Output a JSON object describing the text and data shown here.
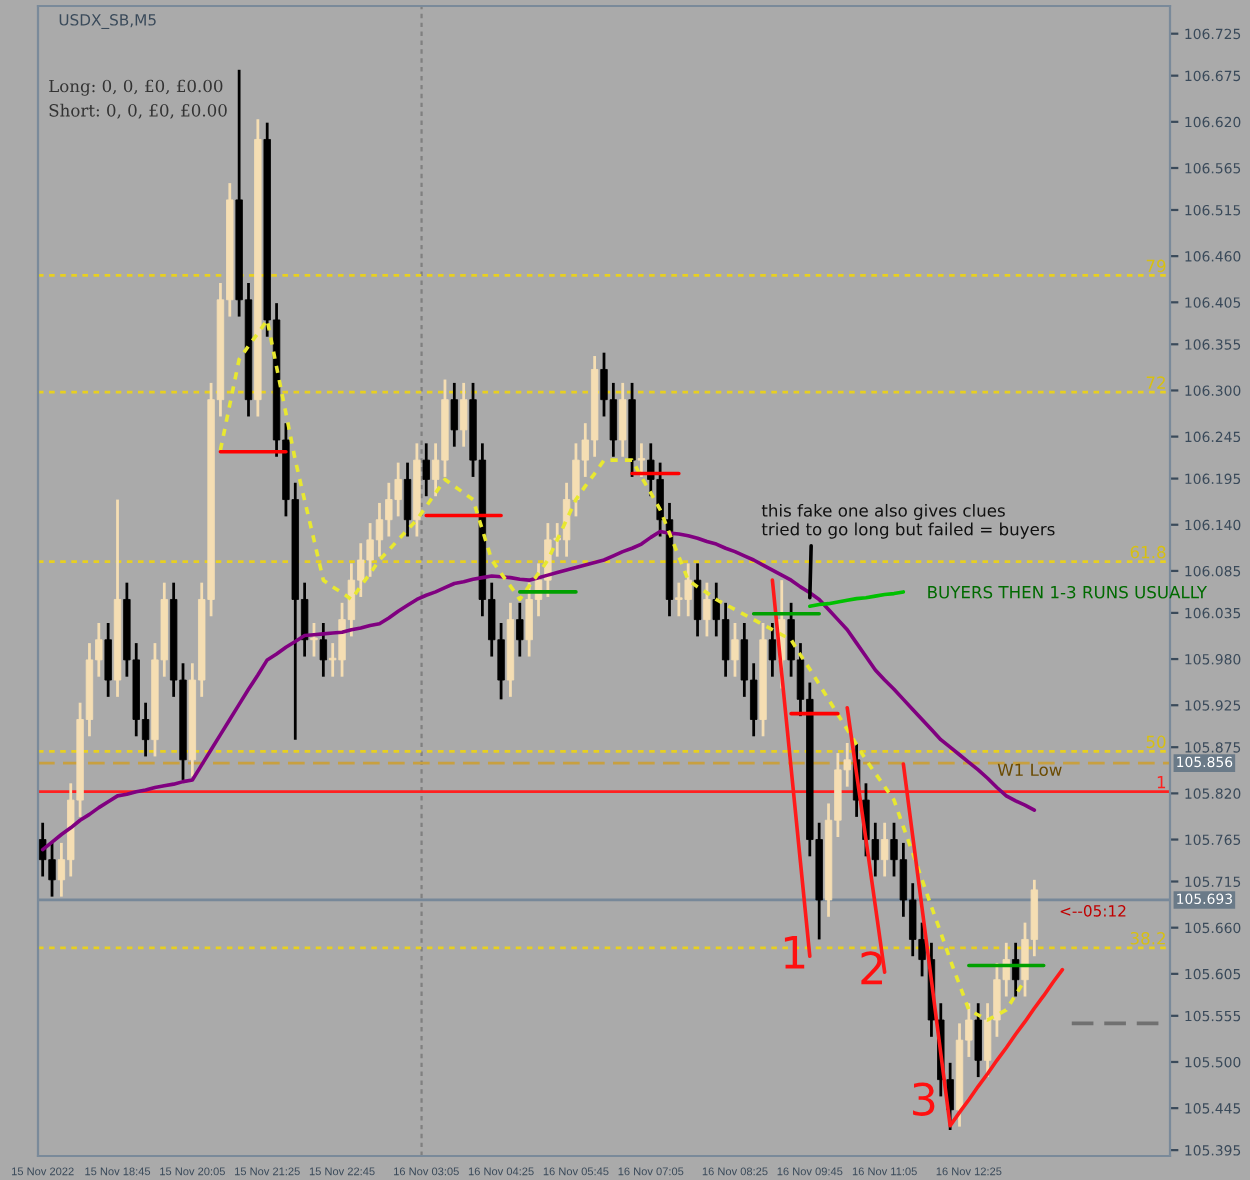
{
  "chart_data": {
    "type": "candlestick",
    "title": "USDX_SB,M5",
    "categories": [
      "15 Nov 2022",
      null,
      null,
      null,
      null,
      null,
      null,
      null,
      "15 Nov 18:45",
      null,
      null,
      null,
      null,
      null,
      null,
      null,
      "15 Nov 20:05",
      null,
      null,
      null,
      null,
      null,
      null,
      null,
      "15 Nov 21:25",
      null,
      null,
      null,
      null,
      null,
      null,
      null,
      "15 Nov 22:45",
      null,
      null,
      null,
      null,
      null,
      null,
      null,
      null,
      "16 Nov 03:05",
      null,
      null,
      null,
      null,
      null,
      null,
      null,
      "16 Nov 04:25",
      null,
      null,
      null,
      null,
      null,
      null,
      null,
      "16 Nov 05:45",
      null,
      null,
      null,
      null,
      null,
      null,
      null,
      "16 Nov 07:05",
      null,
      null,
      null,
      null,
      null,
      null,
      null,
      null,
      "16 Nov 08:25",
      null,
      null,
      null,
      null,
      null,
      null,
      null,
      "16 Nov 09:45",
      null,
      null,
      null,
      null,
      null,
      null,
      null,
      "16 Nov 11:05",
      null,
      null,
      null,
      null,
      null,
      null,
      null,
      null,
      "16 Nov 12:25",
      null,
      null,
      null,
      null,
      null,
      null,
      null,
      null,
      null,
      null,
      null,
      null,
      null,
      null,
      null,
      null,
      null,
      null,
      null,
      null,
      null
    ],
    "ohlc": [
      [
        105.765,
        105.785,
        105.721,
        105.741
      ],
      [
        105.741,
        105.761,
        105.697,
        105.717
      ],
      [
        105.717,
        105.761,
        105.697,
        105.741
      ],
      [
        105.741,
        105.832,
        105.721,
        105.812
      ],
      [
        105.812,
        105.928,
        105.792,
        105.908
      ],
      [
        105.908,
        105.999,
        105.888,
        105.979
      ],
      [
        105.979,
        106.023,
        105.959,
        106.003
      ],
      [
        106.003,
        106.023,
        105.935,
        105.955
      ],
      [
        105.955,
        106.17,
        105.935,
        106.051
      ],
      [
        106.051,
        106.071,
        105.959,
        105.979
      ],
      [
        105.979,
        105.999,
        105.888,
        105.908
      ],
      [
        105.908,
        105.928,
        105.864,
        105.884
      ],
      [
        105.884,
        105.999,
        105.864,
        105.979
      ],
      [
        105.979,
        106.071,
        105.959,
        106.051
      ],
      [
        106.051,
        106.071,
        105.935,
        105.955
      ],
      [
        105.955,
        105.975,
        105.836,
        105.86
      ],
      [
        105.86,
        105.975,
        105.84,
        105.955
      ],
      [
        105.955,
        106.071,
        105.935,
        106.051
      ],
      [
        106.051,
        106.309,
        106.031,
        106.289
      ],
      [
        106.289,
        106.428,
        106.269,
        106.408
      ],
      [
        106.408,
        106.547,
        106.388,
        106.527
      ],
      [
        106.527,
        106.682,
        106.388,
        106.408
      ],
      [
        106.408,
        106.428,
        106.269,
        106.289
      ],
      [
        106.289,
        106.623,
        106.269,
        106.599
      ],
      [
        106.599,
        106.619,
        106.364,
        106.384
      ],
      [
        106.384,
        106.404,
        106.221,
        106.241
      ],
      [
        106.241,
        106.261,
        106.15,
        106.17
      ],
      [
        106.17,
        106.19,
        105.884,
        106.051
      ],
      [
        106.051,
        106.071,
        105.983,
        106.003
      ],
      [
        106.003,
        106.023,
        105.983,
        106.003
      ],
      [
        106.003,
        106.023,
        105.959,
        105.979
      ],
      [
        105.979,
        105.999,
        105.959,
        105.979
      ],
      [
        105.979,
        106.047,
        105.959,
        106.027
      ],
      [
        106.027,
        106.094,
        106.007,
        106.074
      ],
      [
        106.074,
        106.118,
        106.054,
        106.098
      ],
      [
        106.098,
        106.142,
        106.078,
        106.122
      ],
      [
        106.122,
        106.166,
        106.102,
        106.146
      ],
      [
        106.146,
        106.19,
        106.126,
        106.17
      ],
      [
        106.17,
        106.214,
        106.15,
        106.194
      ],
      [
        106.194,
        106.214,
        106.126,
        106.146
      ],
      [
        106.146,
        106.237,
        106.126,
        106.217
      ],
      [
        106.217,
        106.237,
        106.174,
        106.194
      ],
      [
        106.194,
        106.237,
        106.174,
        106.217
      ],
      [
        106.217,
        106.313,
        106.197,
        106.289
      ],
      [
        106.289,
        106.309,
        106.233,
        106.253
      ],
      [
        106.253,
        106.309,
        106.233,
        106.289
      ],
      [
        106.289,
        106.309,
        106.197,
        106.217
      ],
      [
        106.217,
        106.237,
        106.031,
        106.051
      ],
      [
        106.051,
        106.071,
        105.983,
        106.003
      ],
      [
        106.003,
        106.023,
        105.932,
        105.955
      ],
      [
        105.955,
        106.047,
        105.935,
        106.027
      ],
      [
        106.027,
        106.047,
        105.983,
        106.003
      ],
      [
        106.003,
        106.071,
        105.983,
        106.051
      ],
      [
        106.051,
        106.094,
        106.031,
        106.074
      ],
      [
        106.074,
        106.142,
        106.054,
        106.122
      ],
      [
        106.122,
        106.142,
        106.102,
        106.122
      ],
      [
        106.122,
        106.19,
        106.102,
        106.17
      ],
      [
        106.17,
        106.237,
        106.15,
        106.217
      ],
      [
        106.217,
        106.261,
        106.197,
        106.241
      ],
      [
        106.241,
        106.341,
        106.221,
        106.325
      ],
      [
        106.325,
        106.345,
        106.269,
        106.289
      ],
      [
        106.289,
        106.309,
        106.221,
        106.241
      ],
      [
        106.241,
        106.309,
        106.221,
        106.289
      ],
      [
        106.289,
        106.309,
        106.197,
        106.217
      ],
      [
        106.217,
        106.237,
        106.197,
        106.217
      ],
      [
        106.217,
        106.237,
        106.174,
        106.194
      ],
      [
        106.194,
        106.214,
        106.126,
        106.146
      ],
      [
        106.146,
        106.166,
        106.031,
        106.051
      ],
      [
        106.051,
        106.071,
        106.031,
        106.051
      ],
      [
        106.051,
        106.094,
        106.031,
        106.074
      ],
      [
        106.074,
        106.094,
        106.007,
        106.027
      ],
      [
        106.027,
        106.071,
        106.007,
        106.051
      ],
      [
        106.051,
        106.071,
        106.007,
        106.027
      ],
      [
        106.027,
        106.047,
        105.959,
        105.979
      ],
      [
        105.979,
        106.023,
        105.959,
        106.003
      ],
      [
        106.003,
        106.023,
        105.935,
        105.955
      ],
      [
        105.955,
        105.975,
        105.888,
        105.908
      ],
      [
        105.908,
        106.023,
        105.888,
        106.003
      ],
      [
        106.003,
        106.023,
        105.959,
        105.979
      ],
      [
        105.979,
        106.074,
        105.945,
        106.027
      ],
      [
        106.027,
        106.047,
        105.959,
        105.979
      ],
      [
        105.979,
        105.999,
        105.912,
        105.932
      ],
      [
        105.932,
        105.952,
        105.745,
        105.765
      ],
      [
        105.765,
        105.785,
        105.646,
        105.693
      ],
      [
        105.693,
        105.808,
        105.673,
        105.788
      ],
      [
        105.788,
        105.868,
        105.768,
        105.848
      ],
      [
        105.848,
        105.88,
        105.828,
        105.86
      ],
      [
        105.86,
        105.88,
        105.792,
        105.812
      ],
      [
        105.812,
        105.832,
        105.745,
        105.765
      ],
      [
        105.765,
        105.785,
        105.721,
        105.741
      ],
      [
        105.741,
        105.785,
        105.721,
        105.765
      ],
      [
        105.765,
        105.785,
        105.721,
        105.741
      ],
      [
        105.741,
        105.761,
        105.673,
        105.693
      ],
      [
        105.693,
        105.713,
        105.626,
        105.646
      ],
      [
        105.646,
        105.666,
        105.602,
        105.622
      ],
      [
        105.622,
        105.642,
        105.53,
        105.55
      ],
      [
        105.55,
        105.57,
        105.459,
        105.479
      ],
      [
        105.479,
        105.499,
        105.419,
        105.443
      ],
      [
        105.443,
        105.546,
        105.423,
        105.526
      ],
      [
        105.526,
        105.57,
        105.506,
        105.55
      ],
      [
        105.55,
        105.57,
        105.482,
        105.502
      ],
      [
        105.502,
        105.57,
        105.482,
        105.55
      ],
      [
        105.55,
        105.618,
        105.53,
        105.598
      ],
      [
        105.598,
        105.642,
        105.578,
        105.622
      ],
      [
        105.622,
        105.642,
        105.578,
        105.598
      ],
      [
        105.598,
        105.666,
        105.578,
        105.646
      ],
      [
        105.646,
        105.717,
        105.626,
        105.705
      ],
      null,
      null,
      null,
      null,
      null,
      null,
      null,
      null,
      null,
      null,
      null,
      null,
      null,
      null
    ],
    "series": [
      {
        "type": "line",
        "color": "#800080",
        "values": [
          105.753,
          105.762,
          105.771,
          105.779,
          105.788,
          105.795,
          105.803,
          105.81,
          105.817,
          105.819,
          105.822,
          105.824,
          105.827,
          105.829,
          105.831,
          105.834,
          105.836,
          105.854,
          105.872,
          105.89,
          105.908,
          105.926,
          105.944,
          105.961,
          105.979,
          105.986,
          105.994,
          106.001,
          106.008,
          106.009,
          106.01,
          106.011,
          106.012,
          106.015,
          106.017,
          106.02,
          106.022,
          106.029,
          106.037,
          106.044,
          106.051,
          106.056,
          106.06,
          106.065,
          106.07,
          106.072,
          106.075,
          106.077,
          106.079,
          106.078,
          106.077,
          106.075,
          106.074,
          106.077,
          106.08,
          106.083,
          106.086,
          106.089,
          106.092,
          106.095,
          106.098,
          106.103,
          106.108,
          106.112,
          106.117,
          106.125,
          106.132,
          106.13,
          106.129,
          106.127,
          106.124,
          106.12,
          106.117,
          106.112,
          106.108,
          106.103,
          106.098,
          106.092,
          106.086,
          106.08,
          106.074,
          106.066,
          106.059,
          106.051,
          106.039,
          106.027,
          106.015,
          105.999,
          105.983,
          105.967,
          105.955,
          105.944,
          105.932,
          105.92,
          105.908,
          105.896,
          105.884,
          105.875,
          105.866,
          105.857,
          105.848,
          105.838,
          105.827,
          105.817,
          105.811,
          105.806,
          105.8,
          null,
          null,
          null,
          null,
          null,
          null,
          null,
          null,
          null,
          null,
          null,
          null,
          null,
          null
        ]
      },
      {
        "type": "line",
        "color": "#e8e830",
        "line_style": "dotted",
        "values": [
          null,
          null,
          null,
          null,
          null,
          null,
          null,
          null,
          null,
          null,
          null,
          null,
          null,
          null,
          null,
          null,
          null,
          null,
          null,
          106.229,
          106.283,
          106.337,
          106.353,
          106.368,
          106.384,
          106.328,
          106.273,
          106.217,
          106.169,
          106.122,
          106.074,
          106.066,
          106.059,
          106.051,
          106.067,
          106.082,
          106.098,
          106.11,
          106.122,
          106.134,
          106.146,
          106.162,
          106.178,
          106.194,
          106.186,
          106.178,
          106.17,
          106.134,
          106.098,
          106.082,
          106.067,
          106.051,
          106.067,
          106.082,
          106.098,
          106.122,
          106.146,
          106.17,
          106.186,
          106.201,
          106.217,
          106.217,
          106.217,
          106.217,
          106.197,
          106.178,
          106.158,
          106.13,
          106.102,
          106.074,
          106.066,
          106.059,
          106.051,
          106.045,
          106.039,
          106.033,
          106.027,
          106.021,
          106.015,
          106.009,
          106.003,
          105.985,
          105.968,
          105.95,
          105.932,
          105.914,
          105.896,
          105.878,
          105.86,
          105.844,
          105.828,
          105.812,
          105.78,
          105.749,
          105.717,
          105.685,
          105.654,
          105.622,
          105.592,
          105.562,
          105.556,
          105.55,
          105.556,
          105.562,
          105.58,
          105.598,
          null,
          null,
          null,
          null,
          null,
          null,
          null,
          null,
          null,
          null,
          null,
          null,
          null,
          null,
          null
        ]
      },
      {
        "type": "line",
        "color": "#ff0000",
        "values": [
          null,
          null,
          null,
          null,
          null,
          null,
          null,
          null,
          null,
          null,
          null,
          null,
          null,
          null,
          null,
          null,
          null,
          null,
          null,
          106.227,
          106.227,
          106.227,
          106.227,
          106.227,
          106.227,
          106.227,
          106.227,
          null,
          null,
          null,
          null,
          null,
          null,
          null,
          null,
          null,
          null,
          null,
          null,
          null,
          null,
          106.151,
          106.151,
          106.151,
          106.151,
          106.151,
          106.151,
          106.151,
          106.151,
          106.151,
          null,
          null,
          null,
          null,
          null,
          null,
          null,
          null,
          null,
          null,
          null,
          null,
          null,
          106.201,
          106.201,
          106.201,
          106.201,
          106.201,
          106.201,
          null,
          null,
          null,
          null,
          null,
          null,
          null,
          null,
          null,
          null,
          null,
          null,
          null,
          null,
          null,
          null,
          null,
          null,
          null,
          null,
          null,
          null,
          null,
          null,
          null,
          null,
          null,
          null,
          null,
          null,
          null,
          null,
          null,
          null,
          null,
          null,
          null,
          null,
          null,
          null,
          null,
          null,
          null,
          null,
          null,
          null,
          null,
          null,
          null,
          null,
          null,
          null
        ]
      },
      {
        "type": "line",
        "color": "#ff0000",
        "values": [
          null,
          null,
          null,
          null,
          null,
          null,
          null,
          null,
          null,
          null,
          null,
          null,
          null,
          null,
          null,
          null,
          null,
          null,
          null,
          null,
          null,
          null,
          null,
          null,
          null,
          null,
          null,
          null,
          null,
          null,
          null,
          null,
          null,
          null,
          null,
          null,
          null,
          null,
          null,
          null,
          null,
          null,
          null,
          null,
          null,
          null,
          null,
          null,
          null,
          null,
          null,
          null,
          null,
          null,
          null,
          null,
          null,
          null,
          null,
          null,
          null,
          null,
          null,
          null,
          null,
          null,
          null,
          null,
          null,
          null,
          null,
          null,
          null,
          null,
          null,
          null,
          null,
          null,
          null,
          null,
          105.915,
          105.915,
          105.915,
          105.915,
          105.915,
          105.915,
          null,
          null,
          null,
          null,
          null,
          null,
          null,
          null,
          null,
          null,
          null,
          null,
          null,
          null,
          null,
          null,
          null,
          null,
          null,
          null,
          null,
          null,
          null,
          null,
          null,
          null,
          null,
          null,
          null,
          null,
          null,
          null,
          null,
          null,
          null
        ]
      },
      {
        "type": "line",
        "color": "#ff1a1a",
        "values": [
          null,
          null,
          null,
          null,
          null,
          null,
          null,
          null,
          null,
          null,
          null,
          null,
          null,
          null,
          null,
          null,
          null,
          null,
          null,
          null,
          null,
          null,
          null,
          null,
          null,
          null,
          null,
          null,
          null,
          null,
          null,
          null,
          null,
          null,
          null,
          null,
          null,
          null,
          null,
          null,
          null,
          null,
          null,
          null,
          null,
          null,
          null,
          null,
          null,
          null,
          null,
          null,
          null,
          null,
          null,
          null,
          null,
          null,
          null,
          null,
          null,
          null,
          null,
          null,
          null,
          null,
          null,
          null,
          null,
          null,
          null,
          null,
          null,
          null,
          null,
          null,
          null,
          null,
          106.074,
          105.962,
          105.85,
          105.738,
          105.626,
          null,
          null,
          null,
          105.922,
          105.843,
          105.765,
          105.686,
          105.607,
          null,
          105.855,
          105.769,
          105.683,
          105.597,
          105.51,
          105.424,
          105.44,
          105.455,
          105.471,
          105.486,
          105.502,
          105.517,
          105.533,
          105.548,
          105.564,
          105.579,
          105.595,
          105.61,
          null,
          null,
          null,
          null,
          null,
          null,
          null,
          null,
          null,
          null,
          null
        ]
      },
      {
        "type": "line",
        "color": "#00a000",
        "values": [
          null,
          null,
          null,
          null,
          null,
          null,
          null,
          null,
          null,
          null,
          null,
          null,
          null,
          null,
          null,
          null,
          null,
          null,
          null,
          null,
          null,
          null,
          null,
          null,
          null,
          null,
          null,
          null,
          null,
          null,
          null,
          null,
          null,
          null,
          null,
          null,
          null,
          null,
          null,
          null,
          null,
          null,
          null,
          null,
          null,
          null,
          null,
          null,
          null,
          null,
          null,
          106.06,
          106.06,
          106.06,
          106.06,
          106.06,
          106.06,
          106.06,
          null,
          null,
          null,
          null,
          null,
          null,
          null,
          null,
          null,
          null,
          null,
          null,
          null,
          null,
          null,
          null,
          null,
          null,
          106.034,
          106.034,
          106.034,
          106.034,
          106.034,
          106.034,
          106.034,
          106.034,
          null,
          null,
          null,
          null,
          null,
          null,
          null,
          null,
          null,
          null,
          null,
          null,
          null,
          null,
          null,
          105.615,
          105.615,
          105.615,
          105.615,
          105.615,
          105.615,
          105.615,
          105.615,
          105.615,
          null,
          null,
          null,
          null,
          null,
          null,
          null,
          null,
          null,
          null,
          null,
          null,
          null
        ]
      },
      {
        "type": "line",
        "color": "#00c000",
        "values": [
          null,
          null,
          null,
          null,
          null,
          null,
          null,
          null,
          null,
          null,
          null,
          null,
          null,
          null,
          null,
          null,
          null,
          null,
          null,
          null,
          null,
          null,
          null,
          null,
          null,
          null,
          null,
          null,
          null,
          null,
          null,
          null,
          null,
          null,
          null,
          null,
          null,
          null,
          null,
          null,
          null,
          null,
          null,
          null,
          null,
          null,
          null,
          null,
          null,
          null,
          null,
          null,
          null,
          null,
          null,
          null,
          null,
          null,
          null,
          null,
          null,
          null,
          null,
          null,
          null,
          null,
          null,
          null,
          null,
          null,
          null,
          null,
          null,
          null,
          null,
          null,
          null,
          null,
          null,
          null,
          null,
          null,
          106.043,
          106.045,
          106.046,
          106.048,
          106.05,
          106.052,
          106.053,
          106.055,
          106.057,
          106.058,
          106.06,
          null,
          null,
          null,
          null,
          null,
          null,
          null,
          null,
          null,
          null,
          null,
          null,
          null,
          null,
          null,
          null,
          null,
          null,
          null,
          null,
          null,
          null,
          null,
          null,
          null,
          null,
          null,
          null
        ]
      },
      {
        "type": "line",
        "color": "#707070",
        "line_style": "dashed",
        "values": [
          null,
          null,
          null,
          null,
          null,
          null,
          null,
          null,
          null,
          null,
          null,
          null,
          null,
          null,
          null,
          null,
          null,
          null,
          null,
          null,
          null,
          null,
          null,
          null,
          null,
          null,
          null,
          null,
          null,
          null,
          null,
          null,
          null,
          null,
          null,
          null,
          null,
          null,
          null,
          null,
          null,
          null,
          null,
          null,
          null,
          null,
          null,
          null,
          null,
          null,
          null,
          null,
          null,
          null,
          null,
          null,
          null,
          null,
          null,
          null,
          null,
          null,
          null,
          null,
          null,
          null,
          null,
          null,
          null,
          null,
          null,
          null,
          null,
          null,
          null,
          null,
          null,
          null,
          null,
          null,
          null,
          null,
          null,
          null,
          null,
          null,
          null,
          null,
          null,
          null,
          null,
          null,
          null,
          null,
          null,
          null,
          null,
          null,
          null,
          null,
          null,
          null,
          null,
          null,
          null,
          null,
          null,
          null,
          null,
          null,
          105.546,
          105.546,
          105.546,
          105.546,
          105.546,
          105.546,
          105.546,
          105.546,
          105.546,
          105.546,
          105.546
        ]
      }
    ],
    "ref_lines": [
      {
        "axis": "y",
        "value": 106.437,
        "color": "#e8d020",
        "line_style": "dotted"
      },
      {
        "axis": "y",
        "value": 106.298,
        "color": "#e8d020",
        "line_style": "dotted"
      },
      {
        "axis": "y",
        "value": 106.096,
        "color": "#e8d020",
        "line_style": "dotted"
      },
      {
        "axis": "y",
        "value": 105.87,
        "color": "#e8d020",
        "line_style": "dotted"
      },
      {
        "axis": "y",
        "value": 105.856,
        "label": "W1 Low",
        "color": "#c8a040",
        "line_style": "dashed"
      },
      {
        "axis": "y",
        "value": 105.822,
        "color": "#ff2020",
        "line_style": "solid"
      },
      {
        "axis": "y",
        "value": 105.636,
        "color": "#e8d020",
        "line_style": "dotted"
      },
      {
        "axis": "y",
        "value": 105.693,
        "color": "#778899",
        "line_style": "solid"
      }
    ],
    "annotations": [
      "Long: 0, 0, £0, £0.00",
      "Short: 0, 0, £0, £0.00",
      {
        "text": "this fake one also gives clues\ntried to go long but failed = buyers",
        "x": "16 Nov 09:45",
        "y": 106.053
      },
      "BUYERS THEN 1-3 RUNS USUALLY",
      {
        "text": "1",
        "y": 105.626
      },
      "2",
      "3",
      "<--05:12",
      {
        "text": "79",
        "y": 106.437
      },
      {
        "text": "72",
        "y": 106.298
      },
      {
        "text": "61.8",
        "y": 106.096
      },
      {
        "text": "50",
        "y": 105.87
      },
      {
        "text": "1",
        "y": 105.822
      },
      {
        "text": "38.2",
        "y": 105.636
      },
      "105.856",
      "105.693"
    ],
    "ylim": [
      105.388,
      106.758
    ],
    "yticks": [
      {
        "value": 106.725,
        "label": "106.725"
      },
      {
        "value": 106.675,
        "label": "106.675"
      },
      {
        "value": 106.62,
        "label": "106.620"
      },
      {
        "value": 106.565,
        "label": "106.565"
      },
      {
        "value": 106.515,
        "label": "106.515"
      },
      {
        "value": 106.46,
        "label": "106.460"
      },
      {
        "value": 106.405,
        "label": "106.405"
      },
      {
        "value": 106.355,
        "label": "106.355"
      },
      {
        "value": 106.3,
        "label": "106.300"
      },
      {
        "value": 106.245,
        "label": "106.245"
      },
      {
        "value": 106.195,
        "label": "106.195"
      },
      {
        "value": 106.14,
        "label": "106.140"
      },
      {
        "value": 106.085,
        "label": "106.085"
      },
      {
        "value": 106.035,
        "label": "106.035"
      },
      {
        "value": 105.98,
        "label": "105.980"
      },
      {
        "value": 105.925,
        "label": "105.925"
      },
      {
        "value": 105.875,
        "label": "105.875"
      },
      {
        "value": 105.82,
        "label": "105.820"
      },
      {
        "value": 105.765,
        "label": "105.765"
      },
      {
        "value": 105.715,
        "label": "105.715"
      },
      {
        "value": 105.66,
        "label": "105.660"
      },
      {
        "value": 105.605,
        "label": "105.605"
      },
      {
        "value": 105.555,
        "label": "105.555"
      },
      {
        "value": 105.5,
        "label": "105.500"
      },
      {
        "value": 105.445,
        "label": "105.445"
      },
      {
        "value": 105.395,
        "label": "105.395"
      }
    ]
  }
}
